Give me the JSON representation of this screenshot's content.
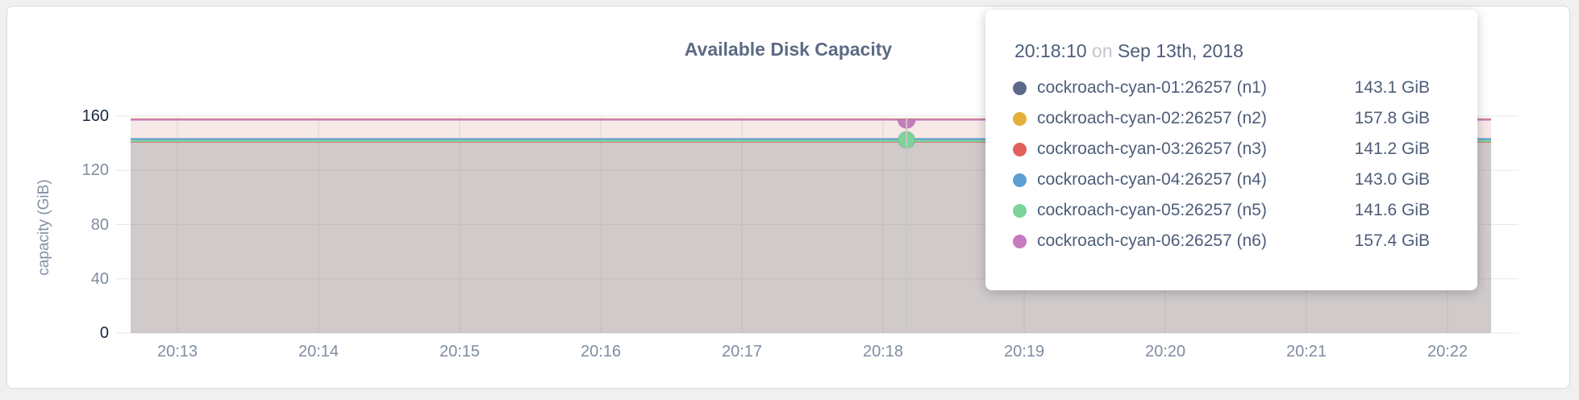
{
  "chart_data": {
    "type": "area",
    "title": "Available Disk Capacity",
    "ylabel": "capacity (GiB)",
    "unit": "GiB",
    "x_tick_labels": [
      "20:13",
      "20:14",
      "20:15",
      "20:16",
      "20:17",
      "20:18",
      "20:19",
      "20:20",
      "20:21",
      "20:22"
    ],
    "y_tick_values": [
      0,
      40,
      80,
      120,
      160
    ],
    "y_tick_labels": [
      "0",
      "40",
      "80",
      "120",
      "160"
    ],
    "ylim": [
      0,
      160
    ],
    "grid": true,
    "legend_position": "tooltip-overlay",
    "hover": {
      "time": "20:18:10",
      "connector": "on",
      "date": "Sep 13th, 2018"
    },
    "series": [
      {
        "name": "cockroach-cyan-01:26257 (n1)",
        "color": "#5a6889",
        "value": 143.1,
        "value_label": "143.1 GiB"
      },
      {
        "name": "cockroach-cyan-02:26257 (n2)",
        "color": "#e3ae3b",
        "value": 157.8,
        "value_label": "157.8 GiB"
      },
      {
        "name": "cockroach-cyan-03:26257 (n3)",
        "color": "#e0615c",
        "value": 141.2,
        "value_label": "141.2 GiB"
      },
      {
        "name": "cockroach-cyan-04:26257 (n4)",
        "color": "#5b9fd3",
        "value": 143.0,
        "value_label": "143.0 GiB"
      },
      {
        "name": "cockroach-cyan-05:26257 (n5)",
        "color": "#7bd39a",
        "value": 141.6,
        "value_label": "141.6 GiB"
      },
      {
        "name": "cockroach-cyan-06:26257 (n6)",
        "color": "#c77ac0",
        "value": 157.4,
        "value_label": "157.4 GiB"
      }
    ]
  }
}
